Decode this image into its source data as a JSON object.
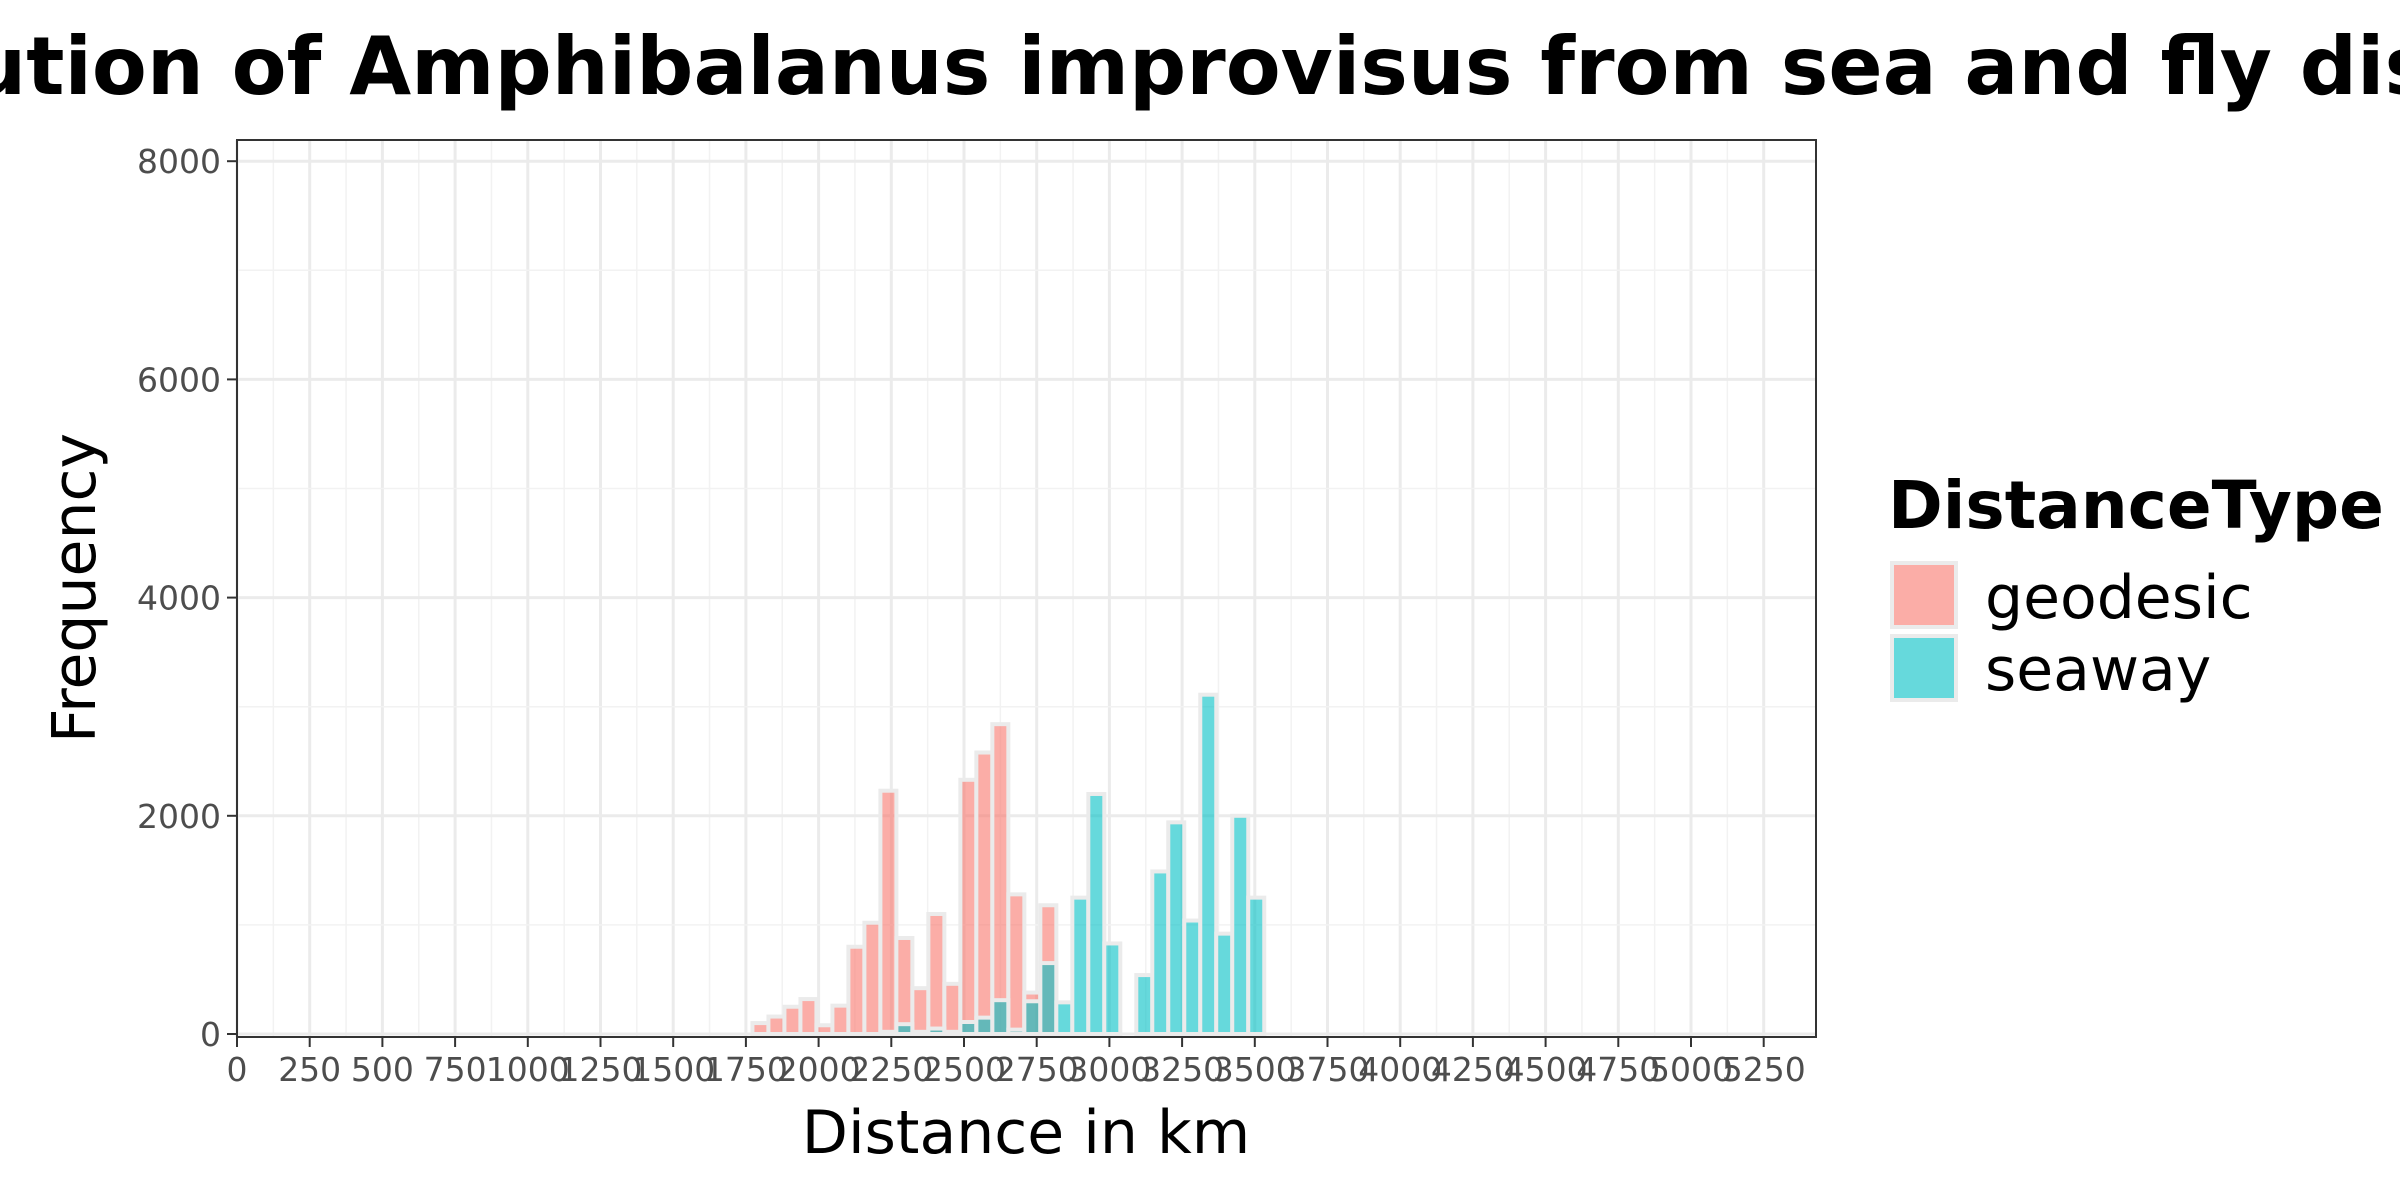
{
  "chart_data": {
    "type": "bar",
    "title": "Distribution of Amphibalanus improvisus from sea and fly distances",
    "xlabel": "Distance in km",
    "ylabel": "Frequency",
    "xlim": [
      0,
      5400
    ],
    "ylim": [
      0,
      8200
    ],
    "bin_width": 55,
    "x_ticks": [
      0,
      250,
      500,
      750,
      1000,
      1250,
      1500,
      1750,
      2000,
      2250,
      2500,
      2750,
      3000,
      3250,
      3500,
      3750,
      4000,
      4250,
      4500,
      4750,
      5000,
      5250
    ],
    "x_tick_labels": [
      "0",
      "250",
      "500",
      "750",
      "1000",
      "1250",
      "1500",
      "1750",
      "2000",
      "2250",
      "2500",
      "2750",
      "3000",
      "3250",
      "3500",
      "3750",
      "4000",
      "4250",
      "4500",
      "4750",
      "5000",
      "5250"
    ],
    "y_ticks": [
      0,
      2000,
      4000,
      6000,
      8000
    ],
    "y_tick_labels": [
      "0",
      "2000",
      "4000",
      "6000",
      "8000"
    ],
    "grid": true,
    "legend": {
      "title": "DistanceType",
      "placement": "right"
    },
    "series": [
      {
        "name": "geodesic",
        "color": "#F8766D",
        "x": [
          1800,
          1855,
          1910,
          1965,
          2020,
          2075,
          2130,
          2185,
          2240,
          2295,
          2350,
          2405,
          2460,
          2515,
          2570,
          2625,
          2680,
          2735,
          2790
        ],
        "values": [
          100,
          160,
          250,
          320,
          80,
          260,
          800,
          1020,
          2230,
          880,
          420,
          1100,
          460,
          2330,
          2580,
          2840,
          1280,
          380,
          1180
        ]
      },
      {
        "name": "seaway",
        "color": "#00BFC4",
        "x": [
          2240,
          2295,
          2350,
          2405,
          2460,
          2515,
          2570,
          2625,
          2680,
          2735,
          2790,
          2845,
          2900,
          2955,
          3010,
          3065,
          3120,
          3175,
          3230,
          3285,
          3340,
          3395,
          3450,
          3505
        ],
        "values": [
          20,
          90,
          20,
          50,
          20,
          110,
          150,
          310,
          40,
          300,
          650,
          290,
          1250,
          2200,
          830,
          0,
          540,
          1490,
          1940,
          1040,
          3110,
          920,
          2000,
          1250
        ]
      }
    ]
  }
}
